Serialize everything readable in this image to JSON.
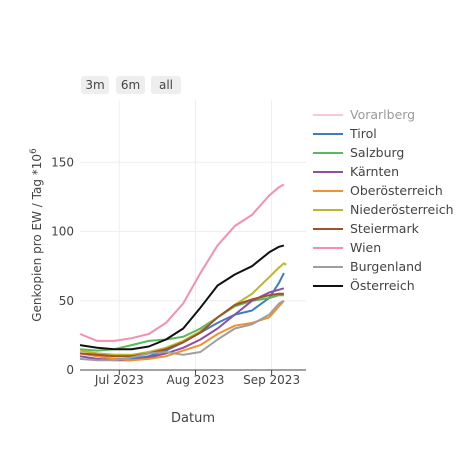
{
  "range_buttons": [
    "3m",
    "6m",
    "all"
  ],
  "chart_data": {
    "type": "line",
    "xlabel": "Datum",
    "ylabel": "Genkopien pro EW / Tag *10^6",
    "ylabel_main": "Genkopien pro EW / Tag *10",
    "ylabel_sup": "6",
    "x_range": [
      "2023-06-15",
      "2023-09-15"
    ],
    "ylim": [
      0,
      195
    ],
    "x_ticks": [
      {
        "date": "2023-07-01",
        "label": "Jul 2023"
      },
      {
        "date": "2023-08-01",
        "label": "Aug 2023"
      },
      {
        "date": "2023-09-01",
        "label": "Sep 2023"
      }
    ],
    "y_ticks": [
      0,
      50,
      100,
      150
    ],
    "grid": true,
    "legend_position": "right",
    "series": [
      {
        "name": "Vorarlberg",
        "color": "#f48fb1",
        "hidden": true,
        "points": []
      },
      {
        "name": "Tirol",
        "color": "#3d7ebf",
        "points": [
          [
            "2023-06-15",
            12
          ],
          [
            "2023-06-22",
            10
          ],
          [
            "2023-06-29",
            8
          ],
          [
            "2023-07-06",
            8
          ],
          [
            "2023-07-13",
            10
          ],
          [
            "2023-07-20",
            14
          ],
          [
            "2023-07-27",
            20
          ],
          [
            "2023-08-03",
            27
          ],
          [
            "2023-08-10",
            34
          ],
          [
            "2023-08-17",
            40
          ],
          [
            "2023-08-24",
            43
          ],
          [
            "2023-08-31",
            52
          ],
          [
            "2023-09-04",
            63
          ],
          [
            "2023-09-06",
            70
          ]
        ]
      },
      {
        "name": "Salzburg",
        "color": "#5cb85c",
        "points": [
          [
            "2023-06-15",
            15
          ],
          [
            "2023-06-22",
            14
          ],
          [
            "2023-06-29",
            15
          ],
          [
            "2023-07-06",
            18
          ],
          [
            "2023-07-13",
            21
          ],
          [
            "2023-07-20",
            22
          ],
          [
            "2023-07-27",
            24
          ],
          [
            "2023-08-03",
            30
          ],
          [
            "2023-08-10",
            38
          ],
          [
            "2023-08-17",
            46
          ],
          [
            "2023-08-24",
            50
          ],
          [
            "2023-08-31",
            52
          ],
          [
            "2023-09-04",
            54
          ],
          [
            "2023-09-06",
            54
          ]
        ]
      },
      {
        "name": "Kärnten",
        "color": "#8e4fa6",
        "points": [
          [
            "2023-06-15",
            10
          ],
          [
            "2023-06-22",
            8
          ],
          [
            "2023-06-29",
            7
          ],
          [
            "2023-07-06",
            7
          ],
          [
            "2023-07-13",
            9
          ],
          [
            "2023-07-20",
            12
          ],
          [
            "2023-07-27",
            16
          ],
          [
            "2023-08-03",
            22
          ],
          [
            "2023-08-10",
            30
          ],
          [
            "2023-08-17",
            40
          ],
          [
            "2023-08-24",
            50
          ],
          [
            "2023-08-31",
            56
          ],
          [
            "2023-09-04",
            58
          ],
          [
            "2023-09-06",
            59
          ]
        ]
      },
      {
        "name": "Oberösterreich",
        "color": "#f0922f",
        "points": [
          [
            "2023-06-15",
            12
          ],
          [
            "2023-06-22",
            10
          ],
          [
            "2023-06-29",
            8
          ],
          [
            "2023-07-06",
            7
          ],
          [
            "2023-07-13",
            8
          ],
          [
            "2023-07-20",
            10
          ],
          [
            "2023-07-27",
            14
          ],
          [
            "2023-08-03",
            18
          ],
          [
            "2023-08-10",
            26
          ],
          [
            "2023-08-17",
            32
          ],
          [
            "2023-08-24",
            34
          ],
          [
            "2023-08-31",
            38
          ],
          [
            "2023-09-04",
            46
          ],
          [
            "2023-09-06",
            50
          ]
        ]
      },
      {
        "name": "Niederösterreich",
        "color": "#bdb52a",
        "points": [
          [
            "2023-06-15",
            14
          ],
          [
            "2023-06-22",
            12
          ],
          [
            "2023-06-29",
            11
          ],
          [
            "2023-07-06",
            11
          ],
          [
            "2023-07-13",
            13
          ],
          [
            "2023-07-20",
            16
          ],
          [
            "2023-07-27",
            21
          ],
          [
            "2023-08-03",
            28
          ],
          [
            "2023-08-10",
            38
          ],
          [
            "2023-08-17",
            47
          ],
          [
            "2023-08-24",
            55
          ],
          [
            "2023-08-31",
            67
          ],
          [
            "2023-09-04",
            74
          ],
          [
            "2023-09-06",
            77
          ],
          [
            "2023-09-07",
            76
          ]
        ]
      },
      {
        "name": "Steiermark",
        "color": "#a0522d",
        "points": [
          [
            "2023-06-15",
            12
          ],
          [
            "2023-06-22",
            11
          ],
          [
            "2023-06-29",
            10
          ],
          [
            "2023-07-06",
            10
          ],
          [
            "2023-07-13",
            12
          ],
          [
            "2023-07-20",
            15
          ],
          [
            "2023-07-27",
            20
          ],
          [
            "2023-08-03",
            27
          ],
          [
            "2023-08-10",
            38
          ],
          [
            "2023-08-17",
            47
          ],
          [
            "2023-08-24",
            51
          ],
          [
            "2023-08-31",
            54
          ],
          [
            "2023-09-04",
            55
          ],
          [
            "2023-09-06",
            55
          ]
        ]
      },
      {
        "name": "Wien",
        "color": "#f48fb1",
        "points": [
          [
            "2023-06-15",
            26
          ],
          [
            "2023-06-22",
            21
          ],
          [
            "2023-06-29",
            21
          ],
          [
            "2023-07-06",
            23
          ],
          [
            "2023-07-13",
            26
          ],
          [
            "2023-07-20",
            34
          ],
          [
            "2023-07-27",
            48
          ],
          [
            "2023-08-03",
            70
          ],
          [
            "2023-08-10",
            90
          ],
          [
            "2023-08-17",
            104
          ],
          [
            "2023-08-24",
            112
          ],
          [
            "2023-08-31",
            126
          ],
          [
            "2023-09-04",
            132
          ],
          [
            "2023-09-06",
            134
          ]
        ]
      },
      {
        "name": "Burgenland",
        "color": "#9e9e9e",
        "points": [
          [
            "2023-06-15",
            8
          ],
          [
            "2023-06-22",
            7
          ],
          [
            "2023-06-29",
            7
          ],
          [
            "2023-07-06",
            9
          ],
          [
            "2023-07-13",
            12
          ],
          [
            "2023-07-20",
            13
          ],
          [
            "2023-07-27",
            11
          ],
          [
            "2023-08-03",
            13
          ],
          [
            "2023-08-10",
            22
          ],
          [
            "2023-08-17",
            30
          ],
          [
            "2023-08-24",
            33
          ],
          [
            "2023-08-31",
            40
          ],
          [
            "2023-09-04",
            48
          ],
          [
            "2023-09-06",
            50
          ]
        ]
      },
      {
        "name": "Österreich",
        "color": "#111111",
        "points": [
          [
            "2023-06-15",
            18
          ],
          [
            "2023-06-22",
            16
          ],
          [
            "2023-06-29",
            15
          ],
          [
            "2023-07-06",
            15
          ],
          [
            "2023-07-13",
            17
          ],
          [
            "2023-07-20",
            22
          ],
          [
            "2023-07-27",
            30
          ],
          [
            "2023-08-03",
            45
          ],
          [
            "2023-08-10",
            61
          ],
          [
            "2023-08-17",
            69
          ],
          [
            "2023-08-24",
            75
          ],
          [
            "2023-08-31",
            85
          ],
          [
            "2023-09-04",
            89
          ],
          [
            "2023-09-06",
            90
          ]
        ]
      }
    ]
  }
}
